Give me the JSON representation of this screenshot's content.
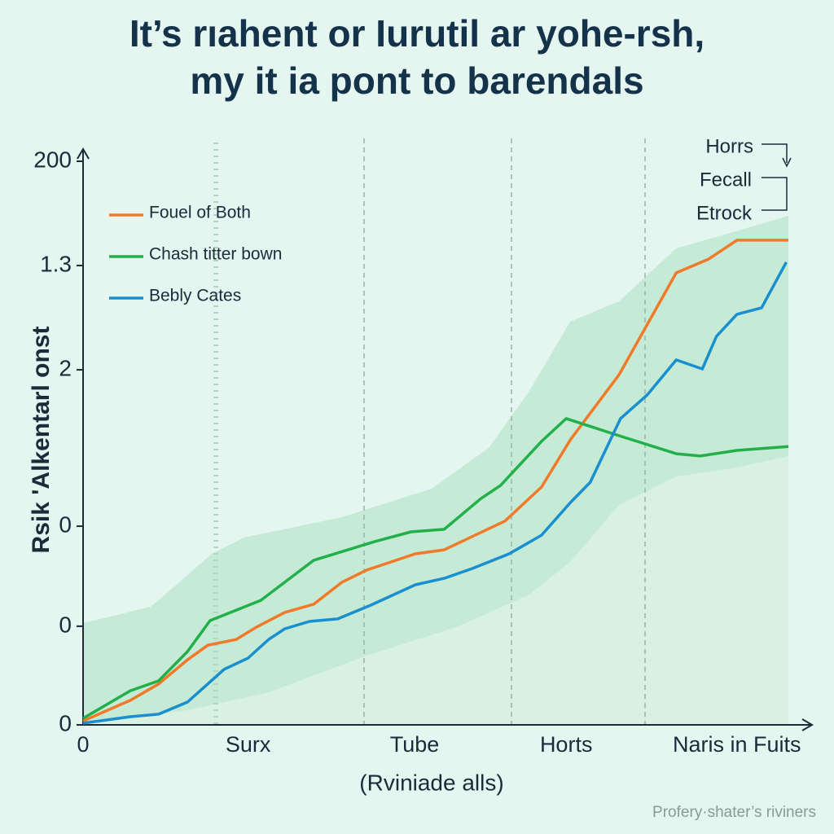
{
  "chart_data": {
    "type": "line",
    "title": [
      "It’s rıahent or Iurutil ar yohe-rsh,",
      "my it ia pont to barendals"
    ],
    "y_label": "Rsik 'Alkentarl onst",
    "x_label": "(Rviniade alls)",
    "xlim": [
      0,
      100
    ],
    "ylim": [
      0,
      200
    ],
    "xticks": [
      0,
      {
        "value": 23.4,
        "label": "Surx"
      },
      {
        "value": 47,
        "label": "Tube"
      },
      {
        "value": 68.5,
        "label": "Horts"
      },
      {
        "value": 92.7,
        "label": "Naris in Fuits"
      }
    ],
    "yticks": [
      0,
      {
        "value": 35,
        "label": "0"
      },
      {
        "value": 70.5,
        "label": "0"
      },
      {
        "value": 126,
        "label": "2"
      },
      {
        "value": 163,
        "label": "1.3"
      },
      200
    ],
    "legend": "upper left",
    "annotations": [
      "Horrs",
      "Fecall",
      "Etrock"
    ],
    "footer": "Profery·shater’s riviners",
    "series": [
      {
        "name": "Fouel of Both",
        "color": "#f07a2a",
        "x": [
          0,
          6.7,
          10.7,
          14.8,
          17.7,
          21.7,
          24.6,
          28.6,
          32.7,
          36.7,
          40.2,
          47.1,
          51.2,
          59.8,
          65.0,
          69.1,
          76.0,
          84.1,
          88.7,
          92.7,
          100
        ],
        "values": [
          1.4,
          8.7,
          14.5,
          23.1,
          28.3,
          30.3,
          34.7,
          39.9,
          42.8,
          50.6,
          54.9,
          60.7,
          62.1,
          72.3,
          84.4,
          101.2,
          124.3,
          160.4,
          165.3,
          172.0,
          172.0
        ]
      },
      {
        "name": "Chash titter bown",
        "color": "#22b04b",
        "x": [
          0,
          6.7,
          10.7,
          14.8,
          18.0,
          25.2,
          32.7,
          41.3,
          46.5,
          51.2,
          56.4,
          59.2,
          65.0,
          68.5,
          76.0,
          84.1,
          87.5,
          92.7,
          100
        ],
        "values": [
          2.3,
          12.1,
          15.6,
          26.0,
          37.0,
          44.2,
          58.4,
          65.0,
          68.5,
          69.4,
          80.3,
          85.0,
          100.6,
          108.7,
          102.6,
          96.2,
          95.4,
          97.4,
          98.8
        ]
      },
      {
        "name": "Bebly Cates",
        "color": "#1a8fd0",
        "x": [
          0,
          6.7,
          10.7,
          14.8,
          20.0,
          23.4,
          26.3,
          28.6,
          32.1,
          36.1,
          40.8,
          47.1,
          51.2,
          55.2,
          60.4,
          65.0,
          69.1,
          71.9,
          76.2,
          80.0,
          84.1,
          87.8,
          89.8,
          92.7,
          96.2,
          99.7
        ],
        "values": [
          0.6,
          2.9,
          3.8,
          8.1,
          19.7,
          23.7,
          30.3,
          34.1,
          36.7,
          37.6,
          42.5,
          49.7,
          52.0,
          55.5,
          60.7,
          67.3,
          78.9,
          86.1,
          108.7,
          117.1,
          129.5,
          126.3,
          137.9,
          145.7,
          148.0,
          164.2
        ]
      }
    ]
  }
}
